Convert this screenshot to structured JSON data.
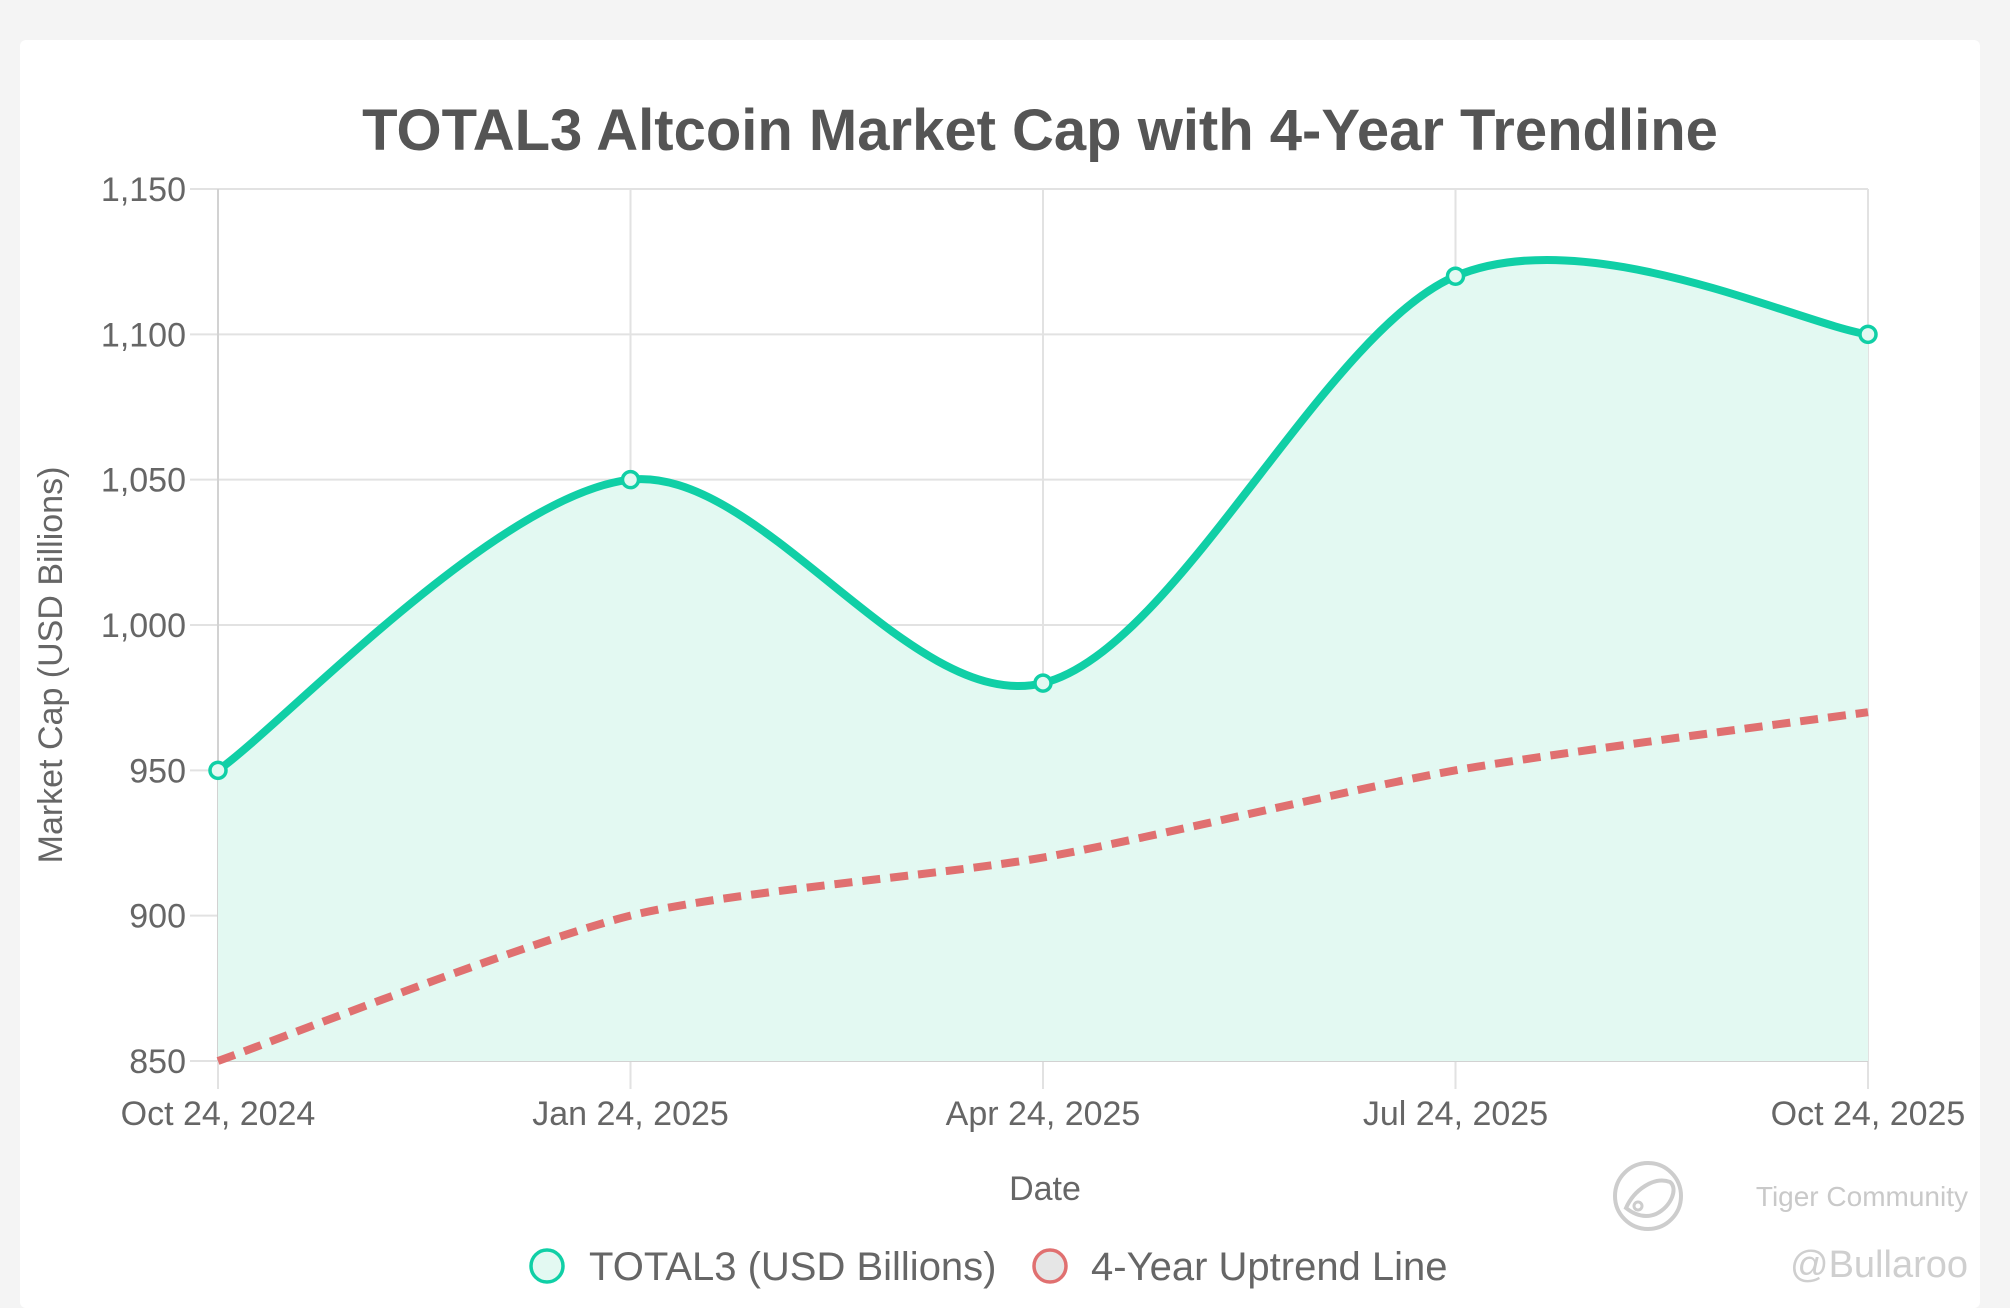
{
  "chart_data": {
    "type": "line",
    "title": "TOTAL3 Altcoin Market Cap with 4-Year Trendline",
    "xlabel": "Date",
    "ylabel": "Market Cap (USD Billions)",
    "categories": [
      "Oct 24, 2024",
      "Jan 24, 2025",
      "Apr 24, 2025",
      "Jul 24, 2025",
      "Oct 24, 2025"
    ],
    "ylim": [
      850,
      1150
    ],
    "yticks": [
      850,
      900,
      950,
      1000,
      1050,
      1100,
      1150
    ],
    "ytick_labels": [
      "850",
      "900",
      "950",
      "1,000",
      "1,050",
      "1,100",
      "1,150"
    ],
    "grid": true,
    "legend_position": "bottom",
    "series": [
      {
        "name": "TOTAL3 (USD Billions)",
        "values": [
          950,
          1050,
          980,
          1120,
          1100
        ],
        "color": "#10cfa6",
        "fill": "#e3f9f2",
        "style": "solid"
      },
      {
        "name": "4-Year Uptrend Line",
        "values": [
          850,
          900,
          920,
          950,
          970
        ],
        "color": "#e07070",
        "legend_fill": "#e6e6e6",
        "style": "dashed"
      }
    ]
  },
  "watermark": {
    "brand": "Tiger Community",
    "handle": "@Bullaroo",
    "color": "#c9c9c9"
  }
}
